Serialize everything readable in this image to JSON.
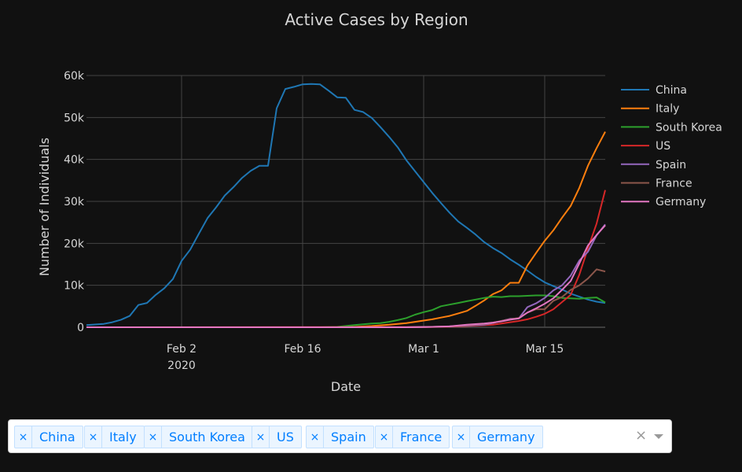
{
  "chart_data": {
    "type": "line",
    "title": "Active Cases by Region",
    "xlabel": "Date",
    "ylabel": "Number of Individuals",
    "x_ticks": [
      {
        "date": "2020-02-02",
        "label": "Feb 2",
        "sublabel": "2020"
      },
      {
        "date": "2020-02-16",
        "label": "Feb 16",
        "sublabel": ""
      },
      {
        "date": "2020-03-01",
        "label": "Mar 1",
        "sublabel": ""
      },
      {
        "date": "2020-03-15",
        "label": "Mar 15",
        "sublabel": ""
      }
    ],
    "y_ticks": [
      {
        "value": 0,
        "label": "0"
      },
      {
        "value": 10000,
        "label": "10k"
      },
      {
        "value": 20000,
        "label": "20k"
      },
      {
        "value": 30000,
        "label": "30k"
      },
      {
        "value": 40000,
        "label": "40k"
      },
      {
        "value": 50000,
        "label": "50k"
      },
      {
        "value": 60000,
        "label": "60k"
      }
    ],
    "xlim": [
      "2020-01-22",
      "2020-03-22"
    ],
    "ylim": [
      0,
      60000
    ],
    "grid": true,
    "legend_position": "right",
    "series": [
      {
        "name": "China",
        "color": "#1f77b4",
        "points": [
          [
            "2020-01-22",
            500
          ],
          [
            "2020-01-24",
            800
          ],
          [
            "2020-01-25",
            1200
          ],
          [
            "2020-01-26",
            1800
          ],
          [
            "2020-01-27",
            2700
          ],
          [
            "2020-01-28",
            5300
          ],
          [
            "2020-01-29",
            5800
          ],
          [
            "2020-01-30",
            7700
          ],
          [
            "2020-01-31",
            9300
          ],
          [
            "2020-02-01",
            11500
          ],
          [
            "2020-02-02",
            15800
          ],
          [
            "2020-02-03",
            18500
          ],
          [
            "2020-02-04",
            22300
          ],
          [
            "2020-02-05",
            26000
          ],
          [
            "2020-02-06",
            28600
          ],
          [
            "2020-02-07",
            31400
          ],
          [
            "2020-02-08",
            33400
          ],
          [
            "2020-02-09",
            35600
          ],
          [
            "2020-02-10",
            37300
          ],
          [
            "2020-02-11",
            38500
          ],
          [
            "2020-02-12",
            38500
          ],
          [
            "2020-02-13",
            52200
          ],
          [
            "2020-02-14",
            56800
          ],
          [
            "2020-02-15",
            57300
          ],
          [
            "2020-02-16",
            57900
          ],
          [
            "2020-02-17",
            58000
          ],
          [
            "2020-02-18",
            57900
          ],
          [
            "2020-02-19",
            56400
          ],
          [
            "2020-02-20",
            54800
          ],
          [
            "2020-02-21",
            54700
          ],
          [
            "2020-02-22",
            51800
          ],
          [
            "2020-02-23",
            51300
          ],
          [
            "2020-02-24",
            49900
          ],
          [
            "2020-02-25",
            47700
          ],
          [
            "2020-02-26",
            45400
          ],
          [
            "2020-02-27",
            42900
          ],
          [
            "2020-02-28",
            39800
          ],
          [
            "2020-02-29",
            37200
          ],
          [
            "2020-03-01",
            34600
          ],
          [
            "2020-03-02",
            32000
          ],
          [
            "2020-03-03",
            29600
          ],
          [
            "2020-03-04",
            27300
          ],
          [
            "2020-03-05",
            25200
          ],
          [
            "2020-03-06",
            23700
          ],
          [
            "2020-03-07",
            22100
          ],
          [
            "2020-03-08",
            20300
          ],
          [
            "2020-03-09",
            18900
          ],
          [
            "2020-03-10",
            17700
          ],
          [
            "2020-03-11",
            16200
          ],
          [
            "2020-03-12",
            14900
          ],
          [
            "2020-03-13",
            13500
          ],
          [
            "2020-03-14",
            12000
          ],
          [
            "2020-03-15",
            10700
          ],
          [
            "2020-03-16",
            9800
          ],
          [
            "2020-03-17",
            9000
          ],
          [
            "2020-03-18",
            8000
          ],
          [
            "2020-03-19",
            7300
          ],
          [
            "2020-03-20",
            6600
          ],
          [
            "2020-03-21",
            6100
          ],
          [
            "2020-03-22",
            5800
          ]
        ]
      },
      {
        "name": "Italy",
        "color": "#ff7f0e",
        "points": [
          [
            "2020-01-22",
            0
          ],
          [
            "2020-02-20",
            0
          ],
          [
            "2020-02-22",
            100
          ],
          [
            "2020-02-24",
            300
          ],
          [
            "2020-02-26",
            600
          ],
          [
            "2020-02-28",
            1000
          ],
          [
            "2020-02-29",
            1300
          ],
          [
            "2020-03-01",
            1600
          ],
          [
            "2020-03-02",
            1900
          ],
          [
            "2020-03-03",
            2300
          ],
          [
            "2020-03-04",
            2700
          ],
          [
            "2020-03-05",
            3300
          ],
          [
            "2020-03-06",
            3900
          ],
          [
            "2020-03-07",
            5100
          ],
          [
            "2020-03-08",
            6400
          ],
          [
            "2020-03-09",
            7900
          ],
          [
            "2020-03-10",
            8800
          ],
          [
            "2020-03-11",
            10600
          ],
          [
            "2020-03-12",
            10600
          ],
          [
            "2020-03-13",
            14700
          ],
          [
            "2020-03-14",
            17700
          ],
          [
            "2020-03-15",
            20600
          ],
          [
            "2020-03-16",
            23100
          ],
          [
            "2020-03-17",
            26100
          ],
          [
            "2020-03-18",
            28900
          ],
          [
            "2020-03-19",
            33200
          ],
          [
            "2020-03-20",
            38500
          ],
          [
            "2020-03-21",
            42700
          ],
          [
            "2020-03-22",
            46600
          ]
        ]
      },
      {
        "name": "South Korea",
        "color": "#2ca02c",
        "points": [
          [
            "2020-01-22",
            0
          ],
          [
            "2020-02-18",
            0
          ],
          [
            "2020-02-19",
            50
          ],
          [
            "2020-02-20",
            100
          ],
          [
            "2020-02-21",
            300
          ],
          [
            "2020-02-22",
            500
          ],
          [
            "2020-02-23",
            700
          ],
          [
            "2020-02-24",
            900
          ],
          [
            "2020-02-25",
            1000
          ],
          [
            "2020-02-26",
            1300
          ],
          [
            "2020-02-27",
            1700
          ],
          [
            "2020-02-28",
            2200
          ],
          [
            "2020-02-29",
            3000
          ],
          [
            "2020-03-01",
            3600
          ],
          [
            "2020-03-02",
            4100
          ],
          [
            "2020-03-03",
            5000
          ],
          [
            "2020-03-04",
            5400
          ],
          [
            "2020-03-05",
            5800
          ],
          [
            "2020-03-06",
            6200
          ],
          [
            "2020-03-07",
            6600
          ],
          [
            "2020-03-08",
            7000
          ],
          [
            "2020-03-09",
            7300
          ],
          [
            "2020-03-10",
            7200
          ],
          [
            "2020-03-11",
            7400
          ],
          [
            "2020-03-12",
            7400
          ],
          [
            "2020-03-13",
            7500
          ],
          [
            "2020-03-14",
            7600
          ],
          [
            "2020-03-15",
            7600
          ],
          [
            "2020-03-16",
            7400
          ],
          [
            "2020-03-17",
            7000
          ],
          [
            "2020-03-18",
            6900
          ],
          [
            "2020-03-19",
            6800
          ],
          [
            "2020-03-20",
            7000
          ],
          [
            "2020-03-21",
            7100
          ],
          [
            "2020-03-22",
            5900
          ]
        ]
      },
      {
        "name": "US",
        "color": "#d62728",
        "points": [
          [
            "2020-01-22",
            0
          ],
          [
            "2020-03-01",
            50
          ],
          [
            "2020-03-03",
            100
          ],
          [
            "2020-03-05",
            200
          ],
          [
            "2020-03-07",
            400
          ],
          [
            "2020-03-09",
            600
          ],
          [
            "2020-03-10",
            900
          ],
          [
            "2020-03-11",
            1200
          ],
          [
            "2020-03-12",
            1500
          ],
          [
            "2020-03-13",
            1900
          ],
          [
            "2020-03-14",
            2500
          ],
          [
            "2020-03-15",
            3200
          ],
          [
            "2020-03-16",
            4300
          ],
          [
            "2020-03-17",
            6000
          ],
          [
            "2020-03-18",
            7700
          ],
          [
            "2020-03-19",
            12500
          ],
          [
            "2020-03-20",
            18800
          ],
          [
            "2020-03-21",
            24700
          ],
          [
            "2020-03-22",
            32700
          ]
        ]
      },
      {
        "name": "Spain",
        "color": "#9467bd",
        "points": [
          [
            "2020-01-22",
            0
          ],
          [
            "2020-02-28",
            0
          ],
          [
            "2020-03-02",
            100
          ],
          [
            "2020-03-04",
            200
          ],
          [
            "2020-03-06",
            400
          ],
          [
            "2020-03-08",
            600
          ],
          [
            "2020-03-09",
            1000
          ],
          [
            "2020-03-10",
            1500
          ],
          [
            "2020-03-11",
            2000
          ],
          [
            "2020-03-12",
            2100
          ],
          [
            "2020-03-13",
            4800
          ],
          [
            "2020-03-14",
            5700
          ],
          [
            "2020-03-15",
            7000
          ],
          [
            "2020-03-16",
            8800
          ],
          [
            "2020-03-17",
            10000
          ],
          [
            "2020-03-18",
            12300
          ],
          [
            "2020-03-19",
            15900
          ],
          [
            "2020-03-20",
            18000
          ],
          [
            "2020-03-21",
            21900
          ],
          [
            "2020-03-22",
            24500
          ]
        ]
      },
      {
        "name": "France",
        "color": "#8c564b",
        "points": [
          [
            "2020-01-22",
            0
          ],
          [
            "2020-02-28",
            0
          ],
          [
            "2020-03-02",
            100
          ],
          [
            "2020-03-04",
            200
          ],
          [
            "2020-03-06",
            500
          ],
          [
            "2020-03-08",
            800
          ],
          [
            "2020-03-09",
            1100
          ],
          [
            "2020-03-10",
            1500
          ],
          [
            "2020-03-11",
            1900
          ],
          [
            "2020-03-12",
            2200
          ],
          [
            "2020-03-13",
            3500
          ],
          [
            "2020-03-14",
            4300
          ],
          [
            "2020-03-15",
            4300
          ],
          [
            "2020-03-16",
            6300
          ],
          [
            "2020-03-17",
            7200
          ],
          [
            "2020-03-18",
            8900
          ],
          [
            "2020-03-19",
            10000
          ],
          [
            "2020-03-20",
            11600
          ],
          [
            "2020-03-21",
            13800
          ],
          [
            "2020-03-22",
            13300
          ]
        ]
      },
      {
        "name": "Germany",
        "color": "#e377c2",
        "points": [
          [
            "2020-01-22",
            0
          ],
          [
            "2020-02-28",
            0
          ],
          [
            "2020-03-02",
            100
          ],
          [
            "2020-03-04",
            200
          ],
          [
            "2020-03-06",
            600
          ],
          [
            "2020-03-08",
            900
          ],
          [
            "2020-03-09",
            1100
          ],
          [
            "2020-03-10",
            1400
          ],
          [
            "2020-03-11",
            1800
          ],
          [
            "2020-03-12",
            2100
          ],
          [
            "2020-03-13",
            3500
          ],
          [
            "2020-03-14",
            4500
          ],
          [
            "2020-03-15",
            5600
          ],
          [
            "2020-03-16",
            6900
          ],
          [
            "2020-03-17",
            8900
          ],
          [
            "2020-03-18",
            11000
          ],
          [
            "2020-03-19",
            15200
          ],
          [
            "2020-03-20",
            19500
          ],
          [
            "2020-03-21",
            22000
          ],
          [
            "2020-03-22",
            24300
          ]
        ]
      }
    ]
  },
  "dropdown": {
    "selected": [
      "China",
      "Italy",
      "South Korea",
      "US",
      "Spain",
      "France",
      "Germany"
    ],
    "remove_glyph": "×",
    "clear_glyph": "×"
  }
}
